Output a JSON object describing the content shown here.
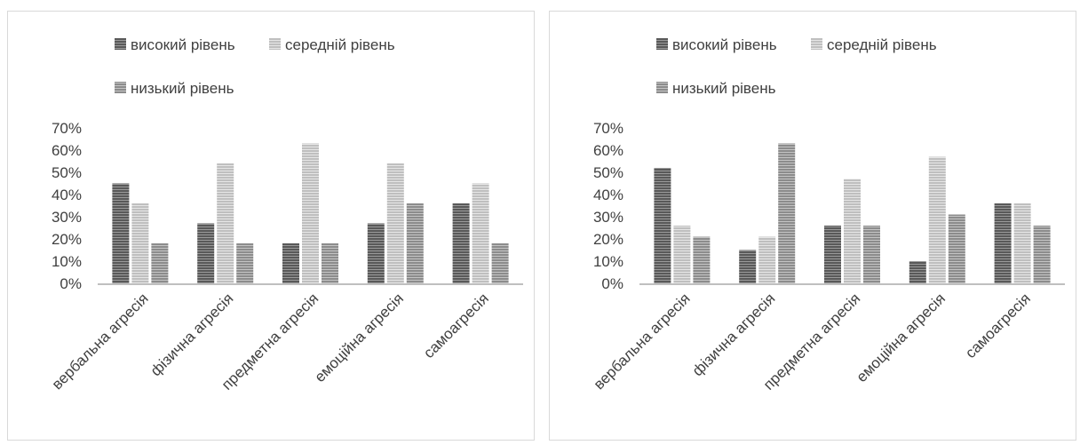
{
  "legend": {
    "high_label": "високий рівень",
    "medium_label": "середній рівень",
    "low_label": "низький рівень"
  },
  "colors": {
    "high": "#595959",
    "medium": "#bfbfbf",
    "low": "#8c8c8c",
    "axis": "#bfbfbf",
    "text": "#404040"
  },
  "chart_data": [
    {
      "type": "bar",
      "categories": [
        "вербальна агресія",
        "фізична агресія",
        "предметна агресія",
        "емоційна агресія",
        "самоагресія"
      ],
      "series": [
        {
          "name": "високий рівень",
          "values": [
            45,
            27,
            18,
            27,
            36
          ]
        },
        {
          "name": "середній рівень",
          "values": [
            36,
            54,
            63,
            54,
            45
          ]
        },
        {
          "name": "низький рівень",
          "values": [
            18,
            18,
            18,
            36,
            18
          ]
        }
      ],
      "ylim": [
        0,
        70
      ],
      "yticks": [
        "0%",
        "10%",
        "20%",
        "30%",
        "40%",
        "50%",
        "60%",
        "70%"
      ],
      "grid": false,
      "legend_position": "top"
    },
    {
      "type": "bar",
      "categories": [
        "вербальна агресія",
        "фізична агресія",
        "предметна агресія",
        "емоційна агресія",
        "самоагресія"
      ],
      "series": [
        {
          "name": "високий рівень",
          "values": [
            52,
            15,
            26,
            10,
            36
          ]
        },
        {
          "name": "середній рівень",
          "values": [
            26,
            21,
            47,
            57,
            36
          ]
        },
        {
          "name": "низький рівень",
          "values": [
            21,
            63,
            26,
            31,
            26
          ]
        }
      ],
      "ylim": [
        0,
        70
      ],
      "yticks": [
        "0%",
        "10%",
        "20%",
        "30%",
        "40%",
        "50%",
        "60%",
        "70%"
      ],
      "grid": false,
      "legend_position": "top"
    }
  ]
}
